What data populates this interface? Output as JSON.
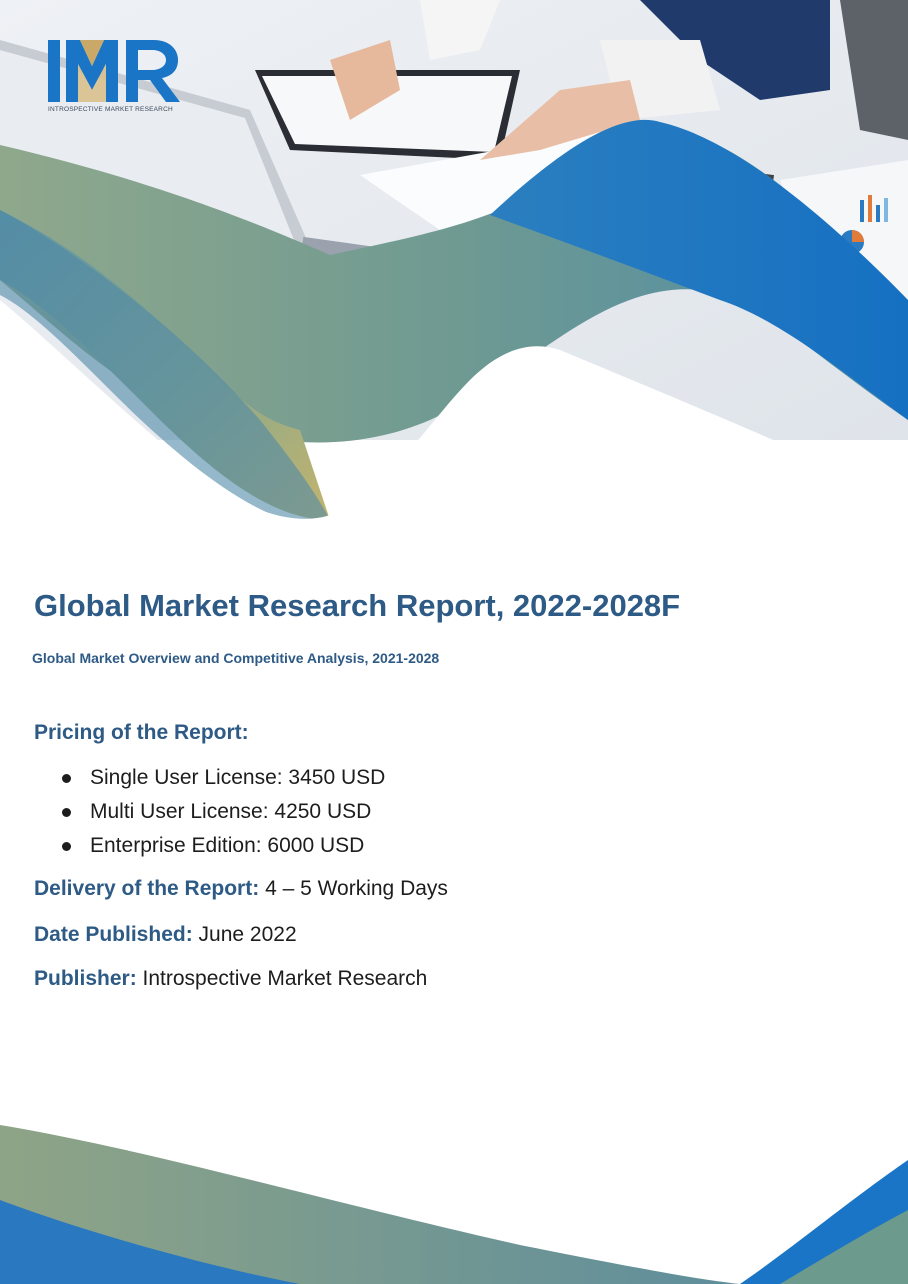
{
  "brand": {
    "logo_text": "IMR",
    "logo_subtitle": "INTROSPECTIVE MARKET RESEARCH",
    "colors": {
      "navy": "#2e5a86",
      "blue": "#1a75c6",
      "gold": "#c9a868",
      "green_grey": "#7a9a86"
    }
  },
  "report": {
    "title": "Global Market Research Report, 2022-2028F",
    "subtitle": "Global Market Overview and Competitive Analysis, 2021-2028"
  },
  "pricing": {
    "heading": "Pricing of the Report:",
    "items": [
      "Single User License: 3450 USD",
      "Multi User License: 4250 USD",
      "Enterprise Edition: 6000 USD"
    ]
  },
  "details": {
    "delivery_label": "Delivery of the Report:",
    "delivery_value": "4 – 5 Working Days",
    "date_label": "Date Published:",
    "date_value": "June 2022",
    "publisher_label": "Publisher:",
    "publisher_value": "Introspective Market Research"
  },
  "images": {
    "header_photo": "office-desk-photo"
  }
}
